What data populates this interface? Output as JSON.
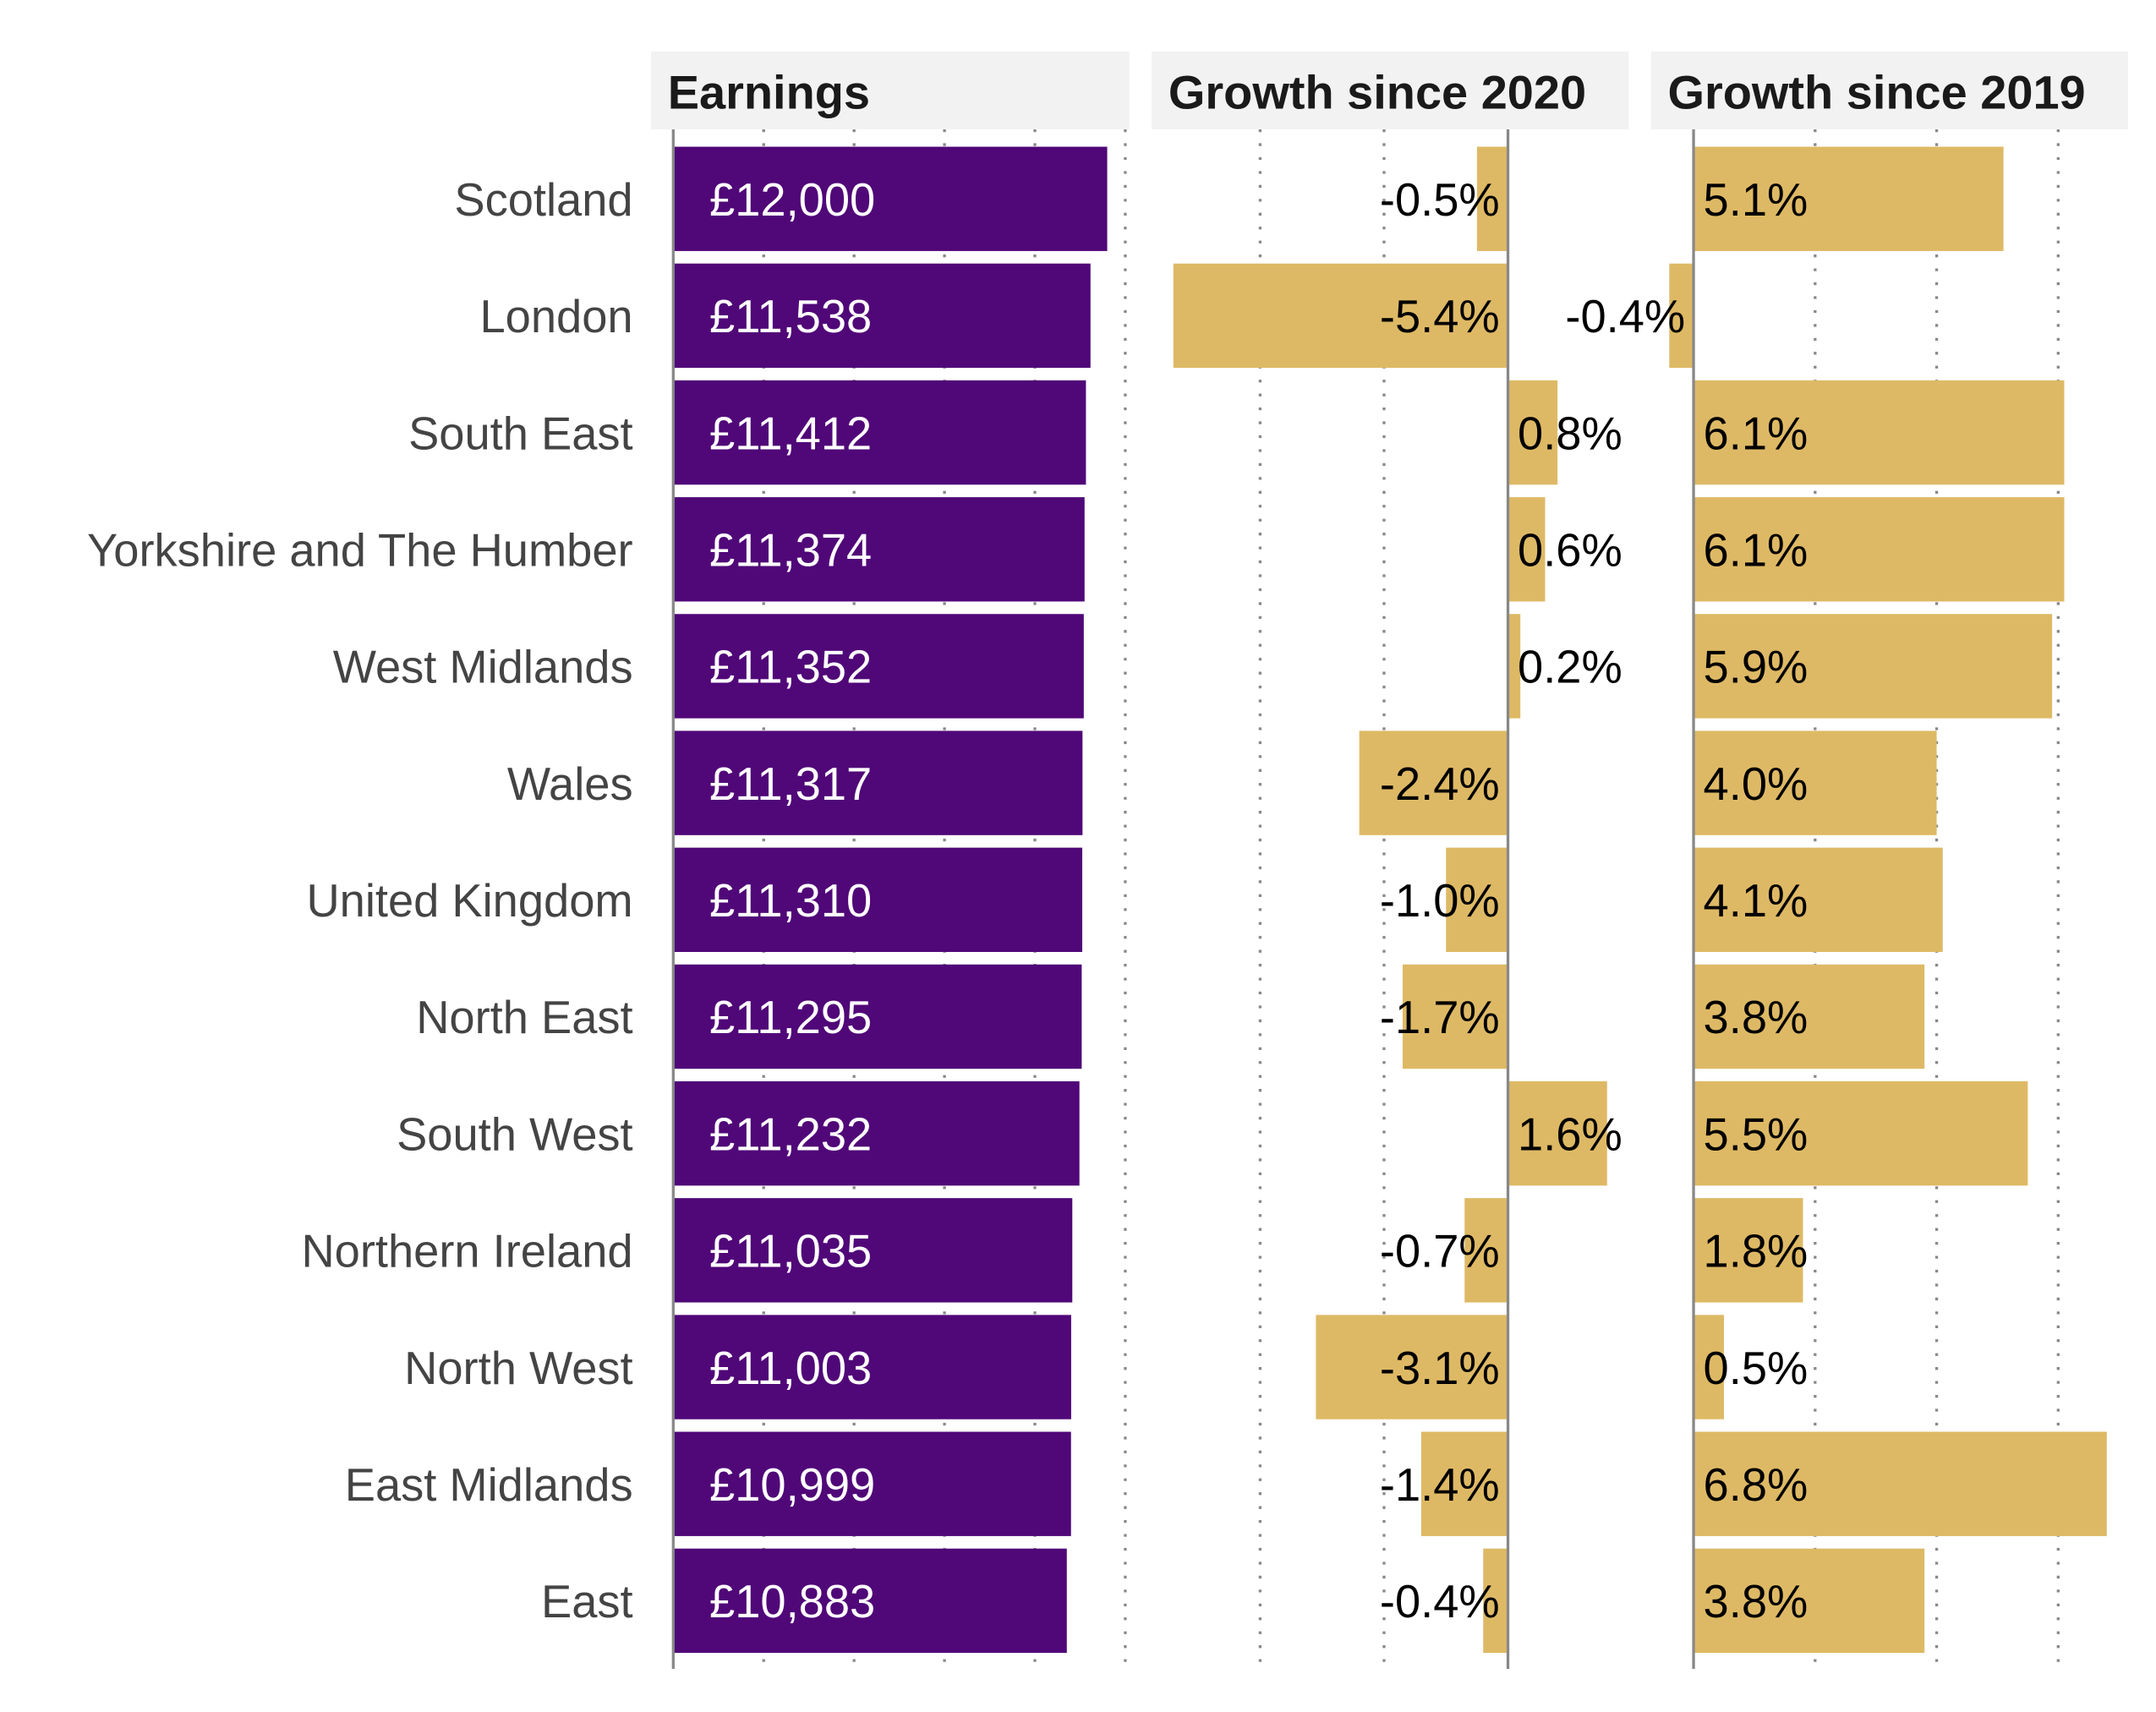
{
  "chart_data": {
    "type": "bar",
    "orientation": "horizontal",
    "categories": [
      "Scotland",
      "London",
      "South East",
      "Yorkshire and The Humber",
      "West Midlands",
      "Wales",
      "United Kingdom",
      "North East",
      "South West",
      "Northern Ireland",
      "North West",
      "East Midlands",
      "East"
    ],
    "panels": [
      {
        "title": "Earnings",
        "values": [
          12000,
          11538,
          11412,
          11374,
          11352,
          11317,
          11310,
          11295,
          11232,
          11035,
          11003,
          10999,
          10883
        ],
        "labels": [
          "£12,000",
          "£11,538",
          "£11,412",
          "£11,374",
          "£11,352",
          "£11,317",
          "£11,310",
          "£11,295",
          "£11,232",
          "£11,035",
          "£11,003",
          "£10,999",
          "£10,883"
        ],
        "xlim": [
          0,
          12750
        ],
        "gridlines": [
          2500,
          5000,
          7500,
          10000,
          12500
        ],
        "bar_color": "#500778",
        "label_color": "#ffffff"
      },
      {
        "title": "Growth since 2020",
        "values": [
          -0.5,
          -5.4,
          0.8,
          0.6,
          0.2,
          -2.4,
          -1.0,
          -1.7,
          1.6,
          -0.7,
          -3.1,
          -1.4,
          -0.4
        ],
        "labels": [
          "-0.5%",
          "-5.4%",
          "0.8%",
          "0.6%",
          "0.2%",
          "-2.4%",
          "-1.0%",
          "-1.7%",
          "1.6%",
          "-0.7%",
          "-3.1%",
          "-1.4%",
          "-0.4%"
        ],
        "xlim": [
          -5.75,
          1.95
        ],
        "gridlines": [
          -4,
          -2
        ],
        "bar_color": "#DEB965",
        "label_color": "#000000"
      },
      {
        "title": "Growth since 2019",
        "values": [
          5.1,
          -0.4,
          6.1,
          6.1,
          5.9,
          4.0,
          4.1,
          3.8,
          5.5,
          1.8,
          0.5,
          6.8,
          3.8
        ],
        "labels": [
          "5.1%",
          "-0.4%",
          "6.1%",
          "6.1%",
          "5.9%",
          "4.0%",
          "4.1%",
          "3.8%",
          "5.5%",
          "1.8%",
          "0.5%",
          "6.8%",
          "3.8%"
        ],
        "xlim": [
          -0.7,
          7.15
        ],
        "gridlines": [
          2,
          4,
          6
        ],
        "bar_color": "#DEB965",
        "label_color": "#000000"
      }
    ],
    "grid": "dotted vertical",
    "header_background": "#F2F2F2"
  }
}
